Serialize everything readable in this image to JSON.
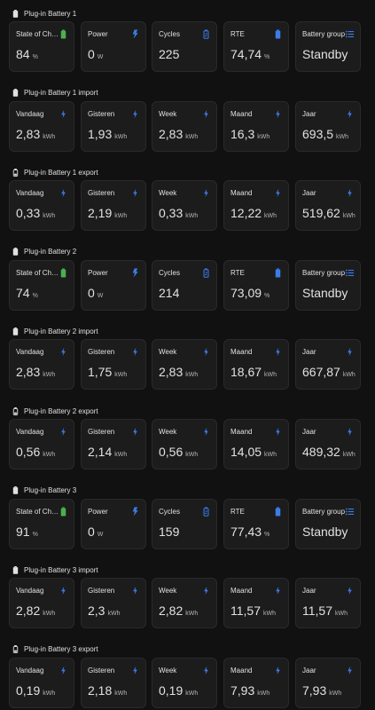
{
  "colors": {
    "icon_blue": "#3b7de8",
    "icon_green": "#4caf50",
    "background": "#111111",
    "card": "#1c1c1c"
  },
  "sections": [
    {
      "title": "Plug-in Battery 1",
      "header_icon": "battery-full-icon",
      "cards": [
        {
          "label": "State of Charge",
          "value": "84",
          "unit": "%",
          "icon": "battery-green-icon"
        },
        {
          "label": "Power",
          "value": "0",
          "unit": "W",
          "icon": "flash-icon"
        },
        {
          "label": "Cycles",
          "value": "225",
          "unit": "",
          "icon": "battery-sync-icon"
        },
        {
          "label": "RTE",
          "value": "74,74",
          "unit": "%",
          "icon": "battery-blue-icon"
        },
        {
          "label": "Battery group",
          "value": "Standby",
          "unit": "",
          "icon": "list-icon"
        }
      ]
    },
    {
      "title": "Plug-in Battery 1 import",
      "header_icon": "battery-full-icon",
      "cards": [
        {
          "label": "Vandaag",
          "value": "2,83",
          "unit": "kWh",
          "icon": "lightning-icon"
        },
        {
          "label": "Gisteren",
          "value": "1,93",
          "unit": "kWh",
          "icon": "lightning-icon"
        },
        {
          "label": "Week",
          "value": "2,83",
          "unit": "kWh",
          "icon": "lightning-icon"
        },
        {
          "label": "Maand",
          "value": "16,3",
          "unit": "kWh",
          "icon": "lightning-icon"
        },
        {
          "label": "Jaar",
          "value": "693,5",
          "unit": "kWh",
          "icon": "lightning-icon"
        }
      ]
    },
    {
      "title": "Plug-in Battery 1 export",
      "header_icon": "battery-outline-icon",
      "cards": [
        {
          "label": "Vandaag",
          "value": "0,33",
          "unit": "kWh",
          "icon": "lightning-icon"
        },
        {
          "label": "Gisteren",
          "value": "2,19",
          "unit": "kWh",
          "icon": "lightning-icon"
        },
        {
          "label": "Week",
          "value": "0,33",
          "unit": "kWh",
          "icon": "lightning-icon"
        },
        {
          "label": "Maand",
          "value": "12,22",
          "unit": "kWh",
          "icon": "lightning-icon"
        },
        {
          "label": "Jaar",
          "value": "519,62",
          "unit": "kWh",
          "icon": "lightning-icon"
        }
      ]
    },
    {
      "title": "Plug-in Battery 2",
      "header_icon": "battery-full-icon",
      "cards": [
        {
          "label": "State of Charge",
          "value": "74",
          "unit": "%",
          "icon": "battery-green-icon"
        },
        {
          "label": "Power",
          "value": "0",
          "unit": "W",
          "icon": "flash-icon"
        },
        {
          "label": "Cycles",
          "value": "214",
          "unit": "",
          "icon": "battery-sync-icon"
        },
        {
          "label": "RTE",
          "value": "73,09",
          "unit": "%",
          "icon": "battery-blue-icon"
        },
        {
          "label": "Battery group",
          "value": "Standby",
          "unit": "",
          "icon": "list-icon"
        }
      ]
    },
    {
      "title": "Plug-in Battery 2 import",
      "header_icon": "battery-full-icon",
      "cards": [
        {
          "label": "Vandaag",
          "value": "2,83",
          "unit": "kWh",
          "icon": "lightning-icon"
        },
        {
          "label": "Gisteren",
          "value": "1,75",
          "unit": "kWh",
          "icon": "lightning-icon"
        },
        {
          "label": "Week",
          "value": "2,83",
          "unit": "kWh",
          "icon": "lightning-icon"
        },
        {
          "label": "Maand",
          "value": "18,67",
          "unit": "kWh",
          "icon": "lightning-icon"
        },
        {
          "label": "Jaar",
          "value": "667,87",
          "unit": "kWh",
          "icon": "lightning-icon"
        }
      ]
    },
    {
      "title": "Plug-in Battery 2 export",
      "header_icon": "battery-outline-icon",
      "cards": [
        {
          "label": "Vandaag",
          "value": "0,56",
          "unit": "kWh",
          "icon": "lightning-icon"
        },
        {
          "label": "Gisteren",
          "value": "2,14",
          "unit": "kWh",
          "icon": "lightning-icon"
        },
        {
          "label": "Week",
          "value": "0,56",
          "unit": "kWh",
          "icon": "lightning-icon"
        },
        {
          "label": "Maand",
          "value": "14,05",
          "unit": "kWh",
          "icon": "lightning-icon"
        },
        {
          "label": "Jaar",
          "value": "489,32",
          "unit": "kWh",
          "icon": "lightning-icon"
        }
      ]
    },
    {
      "title": "Plug-in Battery 3",
      "header_icon": "battery-full-icon",
      "cards": [
        {
          "label": "State of Charge",
          "value": "91",
          "unit": "%",
          "icon": "battery-green-icon"
        },
        {
          "label": "Power",
          "value": "0",
          "unit": "W",
          "icon": "flash-icon"
        },
        {
          "label": "Cycles",
          "value": "159",
          "unit": "",
          "icon": "battery-sync-icon"
        },
        {
          "label": "RTE",
          "value": "77,43",
          "unit": "%",
          "icon": "battery-blue-icon"
        },
        {
          "label": "Battery group",
          "value": "Standby",
          "unit": "",
          "icon": "list-icon"
        }
      ]
    },
    {
      "title": "Plug-in Battery 3 import",
      "header_icon": "battery-full-icon",
      "cards": [
        {
          "label": "Vandaag",
          "value": "2,82",
          "unit": "kWh",
          "icon": "lightning-icon"
        },
        {
          "label": "Gisteren",
          "value": "2,3",
          "unit": "kWh",
          "icon": "lightning-icon"
        },
        {
          "label": "Week",
          "value": "2,82",
          "unit": "kWh",
          "icon": "lightning-icon"
        },
        {
          "label": "Maand",
          "value": "11,57",
          "unit": "kWh",
          "icon": "lightning-icon"
        },
        {
          "label": "Jaar",
          "value": "11,57",
          "unit": "kWh",
          "icon": "lightning-icon"
        }
      ]
    },
    {
      "title": "Plug-in Battery 3 export",
      "header_icon": "battery-outline-icon",
      "cards": [
        {
          "label": "Vandaag",
          "value": "0,19",
          "unit": "kWh",
          "icon": "lightning-icon"
        },
        {
          "label": "Gisteren",
          "value": "2,18",
          "unit": "kWh",
          "icon": "lightning-icon"
        },
        {
          "label": "Week",
          "value": "0,19",
          "unit": "kWh",
          "icon": "lightning-icon"
        },
        {
          "label": "Maand",
          "value": "7,93",
          "unit": "kWh",
          "icon": "lightning-icon"
        },
        {
          "label": "Jaar",
          "value": "7,93",
          "unit": "kWh",
          "icon": "lightning-icon"
        }
      ]
    }
  ]
}
